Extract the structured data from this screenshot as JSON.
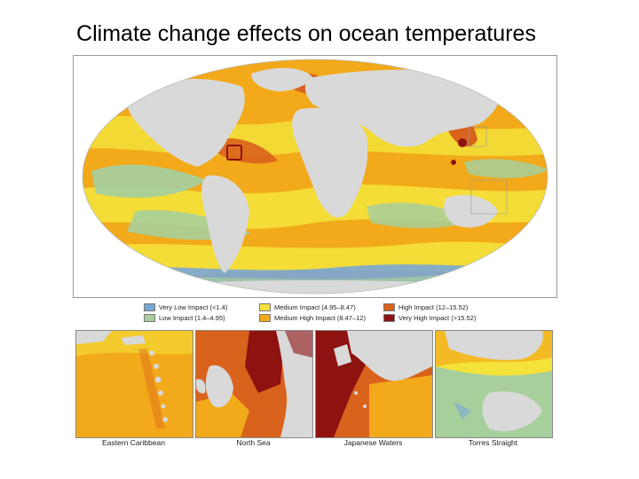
{
  "title": "Climate change effects on ocean temperatures",
  "legend": [
    {
      "label": "Very Low Impact (<1.4)",
      "color": "#7aa6d6"
    },
    {
      "label": "Medium Impact (4.95–8.47)",
      "color": "#f3e23a"
    },
    {
      "label": "High Impact (12–15.52)",
      "color": "#d9621c"
    },
    {
      "label": "Low Impact (1.4–4.95)",
      "color": "#a7cf9c"
    },
    {
      "label": "Medium High Impact (8.47–12)",
      "color": "#f2a91a"
    },
    {
      "label": "Very High Impact (>15.52)",
      "color": "#8e1210"
    }
  ],
  "insets": [
    {
      "label": "Eastern Caribbean"
    },
    {
      "label": "North Sea"
    },
    {
      "label": "Japanese Waters"
    },
    {
      "label": "Torres Straight"
    }
  ],
  "colors": {
    "land": "#d9d9d9",
    "ocean_base": "#f2a91a",
    "highlight_box": "#8e1210"
  }
}
